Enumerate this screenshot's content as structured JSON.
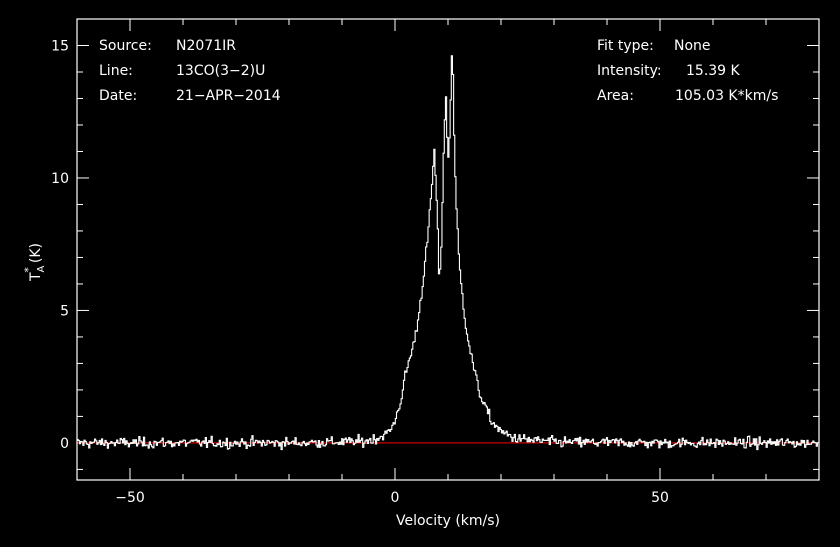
{
  "chart_data": {
    "type": "line",
    "xlabel": "Velocity (km/s)",
    "ylabel_main": "T",
    "ylabel_sub": "A",
    "ylabel_sup": "*",
    "ylabel_unit": "(K)",
    "xlim": [
      -60,
      80
    ],
    "ylim": [
      -1.4,
      16.0
    ],
    "x_ticks": [
      -50,
      0,
      50
    ],
    "x_tick_labels": [
      "−50",
      "0",
      "50"
    ],
    "y_ticks": [
      0,
      5,
      10,
      15
    ],
    "y_tick_labels": [
      "0",
      "5",
      "10",
      "15"
    ],
    "x_minor_step": 10,
    "y_minor_step": 1,
    "baseline": 0,
    "colors": {
      "background": "#000000",
      "frame": "#ffffff",
      "spectrum": "#ffffff",
      "baseline": "#cc0000"
    },
    "info_left": [
      {
        "label": "Source:",
        "value": "N2071IR"
      },
      {
        "label": "Line:",
        "value": "13CO(3−2)U"
      },
      {
        "label": "Date:",
        "value": "21−APR−2014"
      }
    ],
    "info_right": [
      {
        "label": "Fit type:",
        "value": "None"
      },
      {
        "label": "Intensity:",
        "value": "15.39 K"
      },
      {
        "label": "Area:",
        "value": "105.03 K*km/s"
      }
    ],
    "series": [
      {
        "x": [
          -60,
          -20,
          -6,
          -3,
          -1,
          0,
          1,
          2,
          3,
          4,
          5,
          6,
          6.8,
          7.3,
          7.8,
          8.3,
          8.7,
          9.1,
          9.5,
          9.9,
          10.3,
          10.7,
          11.1,
          11.6,
          12.2,
          13,
          14,
          15,
          16,
          18,
          20,
          23,
          30,
          50,
          80
        ],
        "values": [
          0,
          0,
          0.05,
          0.2,
          0.45,
          0.9,
          1.6,
          2.7,
          3.4,
          4.3,
          5.8,
          7.6,
          9.5,
          11.1,
          9.0,
          5.8,
          7.8,
          11.2,
          13.2,
          10.5,
          12.0,
          15.39,
          11.2,
          8.3,
          6.3,
          4.8,
          3.6,
          2.6,
          1.8,
          0.85,
          0.4,
          0.15,
          0.03,
          0,
          0
        ],
        "noise_rms": 0.18
      }
    ]
  }
}
